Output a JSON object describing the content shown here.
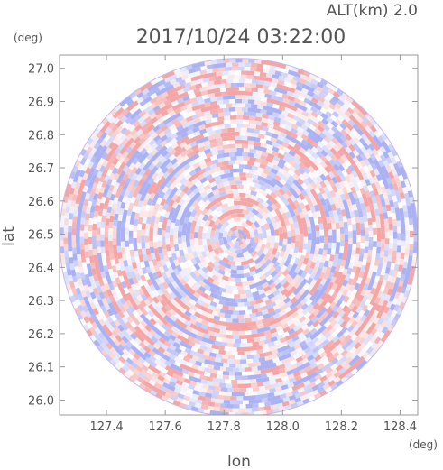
{
  "header": {
    "alt_label": "ALT(km)  2.0",
    "timestamp": "2017/10/24 03:22:00"
  },
  "chart_data": {
    "type": "heatmap",
    "title": "2017/10/24 03:22:00",
    "subtitle": "ALT(km)  2.0",
    "xlabel": "lon",
    "ylabel": "lat",
    "x_unit": "(deg)",
    "y_unit": "(deg)",
    "xlim": [
      127.24,
      128.46
    ],
    "ylim": [
      25.955,
      27.04
    ],
    "x_ticks": [
      127.4,
      127.6,
      127.8,
      128.0,
      128.2,
      128.4
    ],
    "x_tick_labels": [
      "127.4",
      "127.6",
      "127.8",
      "128.0",
      "128.2",
      "128.4"
    ],
    "y_ticks": [
      26.0,
      26.1,
      26.2,
      26.3,
      26.4,
      26.5,
      26.6,
      26.7,
      26.8,
      26.9,
      27.0
    ],
    "y_tick_labels": [
      "26.0",
      "26.1",
      "26.2",
      "26.3",
      "26.4",
      "26.5",
      "26.6",
      "26.7",
      "26.8",
      "26.9",
      "27.0"
    ],
    "center": {
      "lon": 127.85,
      "lat": 26.49
    },
    "radius_deg_lat": 0.54,
    "grid": false,
    "colors": {
      "positive": "#f4a6a6",
      "negative": "#aab2f4",
      "zero": "#ffffff",
      "frame": "#999999"
    }
  }
}
